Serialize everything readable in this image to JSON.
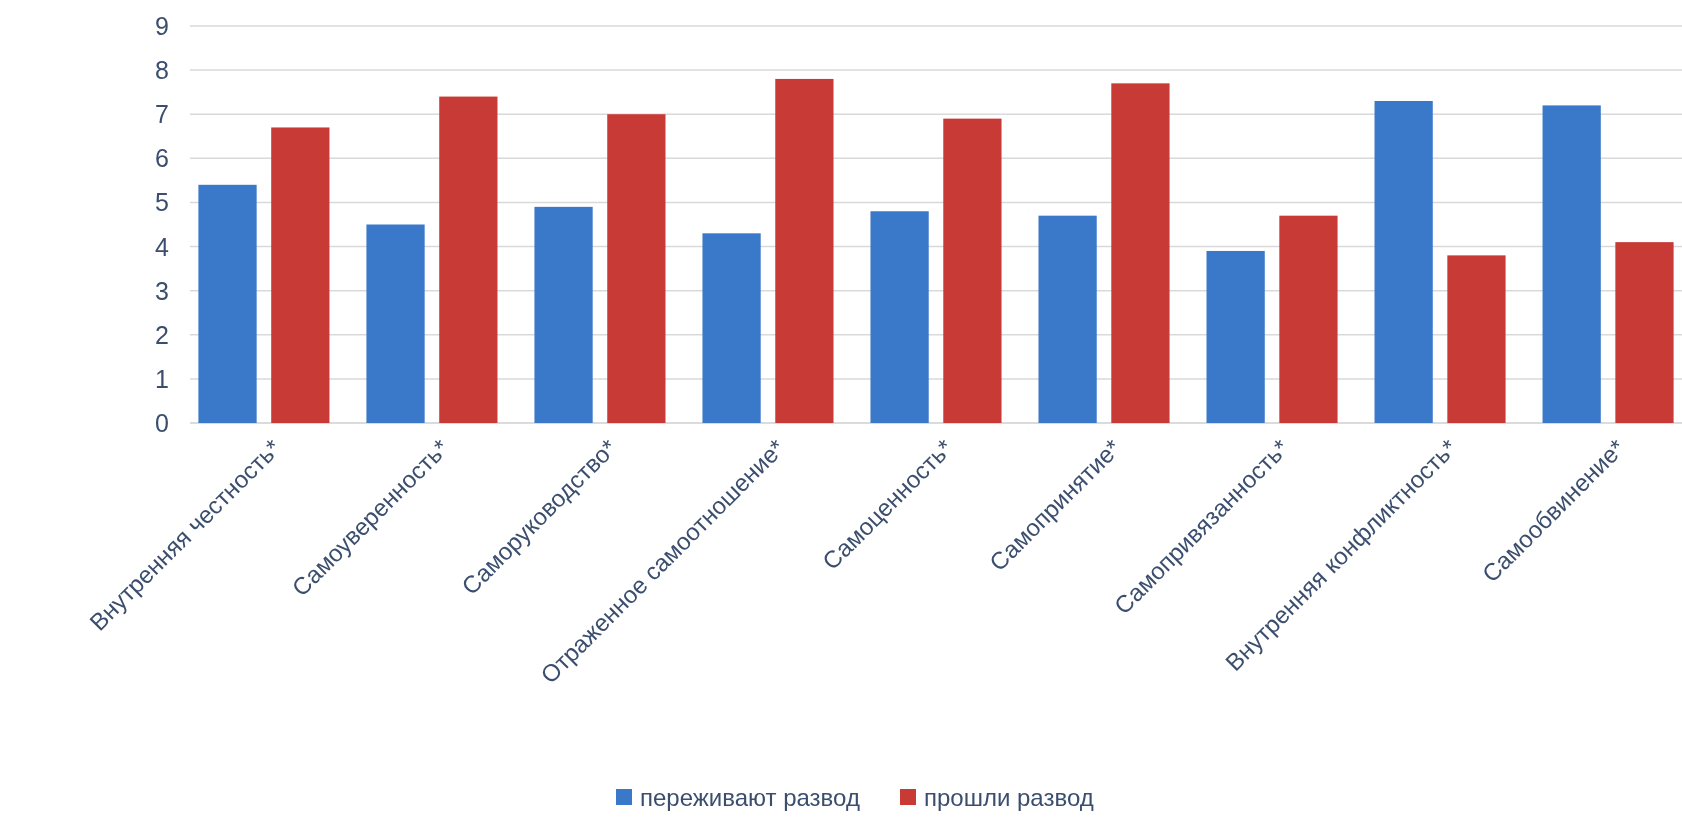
{
  "chart_data": {
    "type": "bar",
    "categories": [
      "Внутренняя честность*",
      "Самоуверенность*",
      "Саморуководство*",
      "Отраженное самоотношение*",
      "Самоценность*",
      "Самопринятие*",
      "Самопривязанность*",
      "Внутренняя конфликтность*",
      "Самообвинение*"
    ],
    "series": [
      {
        "name": "переживают развод",
        "color": "#3a78c9",
        "values": [
          5.4,
          4.5,
          4.9,
          4.3,
          4.8,
          4.7,
          3.9,
          7.3,
          7.2
        ]
      },
      {
        "name": "прошли развод",
        "color": "#c73a36",
        "values": [
          6.7,
          7.4,
          7.0,
          7.8,
          6.9,
          7.7,
          4.7,
          3.8,
          4.1
        ]
      }
    ],
    "ylim": [
      0,
      9
    ],
    "yticks": [
      0,
      1,
      2,
      3,
      4,
      5,
      6,
      7,
      8,
      9
    ],
    "grid": "y",
    "legend": "bottom"
  }
}
